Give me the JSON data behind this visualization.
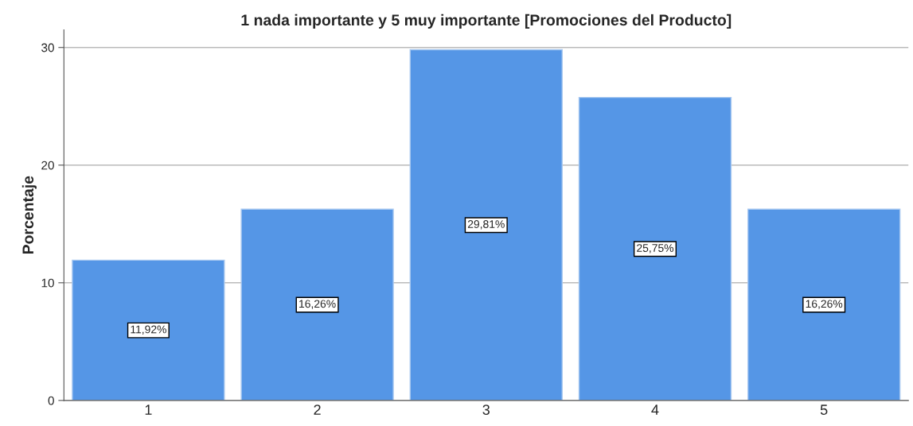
{
  "chart_data": {
    "type": "bar",
    "title": "1 nada importante y 5 muy importante [Promociones del Producto]",
    "ylabel": "Porcentaje",
    "categories": [
      "1",
      "2",
      "3",
      "4",
      "5"
    ],
    "values": [
      11.92,
      16.26,
      29.81,
      25.75,
      16.26
    ],
    "color": "#5596e6",
    "value_labels": [
      "11,92%",
      "16,26%",
      "29,81%",
      "25,75%",
      "16,26%"
    ],
    "ylim": [
      0,
      31.5
    ],
    "yticks": [
      0,
      10,
      20,
      30
    ],
    "grid": "y",
    "legend": false
  }
}
